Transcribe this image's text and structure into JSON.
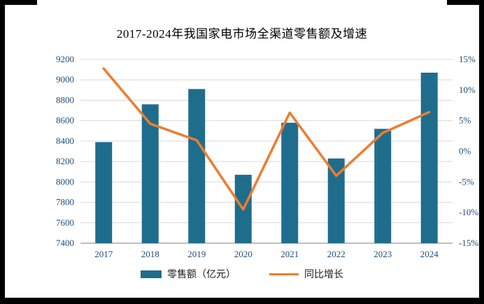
{
  "title": "2017-2024年我国家电市场全渠道零售额及增速",
  "legend": {
    "bar_label": "零售额（亿元）",
    "line_label": "同比增长"
  },
  "colors": {
    "bar": "#1F6D8C",
    "line": "#ED7D31",
    "grid": "#D9D9D9",
    "axis_line": "#7F7F7F",
    "tick_text": "#1F4E79",
    "title_text": "#000000"
  },
  "chart_data": {
    "type": "bar+line combo",
    "title": "2017-2024年我国家电市场全渠道零售额及增速",
    "categories": [
      "2017",
      "2018",
      "2019",
      "2020",
      "2021",
      "2022",
      "2023",
      "2024"
    ],
    "series": [
      {
        "name": "零售额（亿元）",
        "type": "bar",
        "axis": "left",
        "values": [
          8390,
          8760,
          8910,
          8070,
          8580,
          8230,
          8520,
          9070
        ]
      },
      {
        "name": "同比增长",
        "type": "line",
        "axis": "right",
        "values": [
          13.5,
          4.5,
          1.8,
          -9.5,
          6.3,
          -4.0,
          3.0,
          6.4
        ]
      }
    ],
    "left_axis": {
      "min": 7400,
      "max": 9200,
      "step": 200,
      "ticks": [
        7400,
        7600,
        7800,
        8000,
        8200,
        8400,
        8600,
        8800,
        9000,
        9200
      ]
    },
    "right_axis": {
      "min": -15,
      "max": 15,
      "step": 5,
      "tick_labels": [
        "-15%",
        "-10%",
        "-5%",
        "0%",
        "5%",
        "10%",
        "15%"
      ]
    },
    "grid": "horizontal",
    "legend_position": "bottom"
  }
}
